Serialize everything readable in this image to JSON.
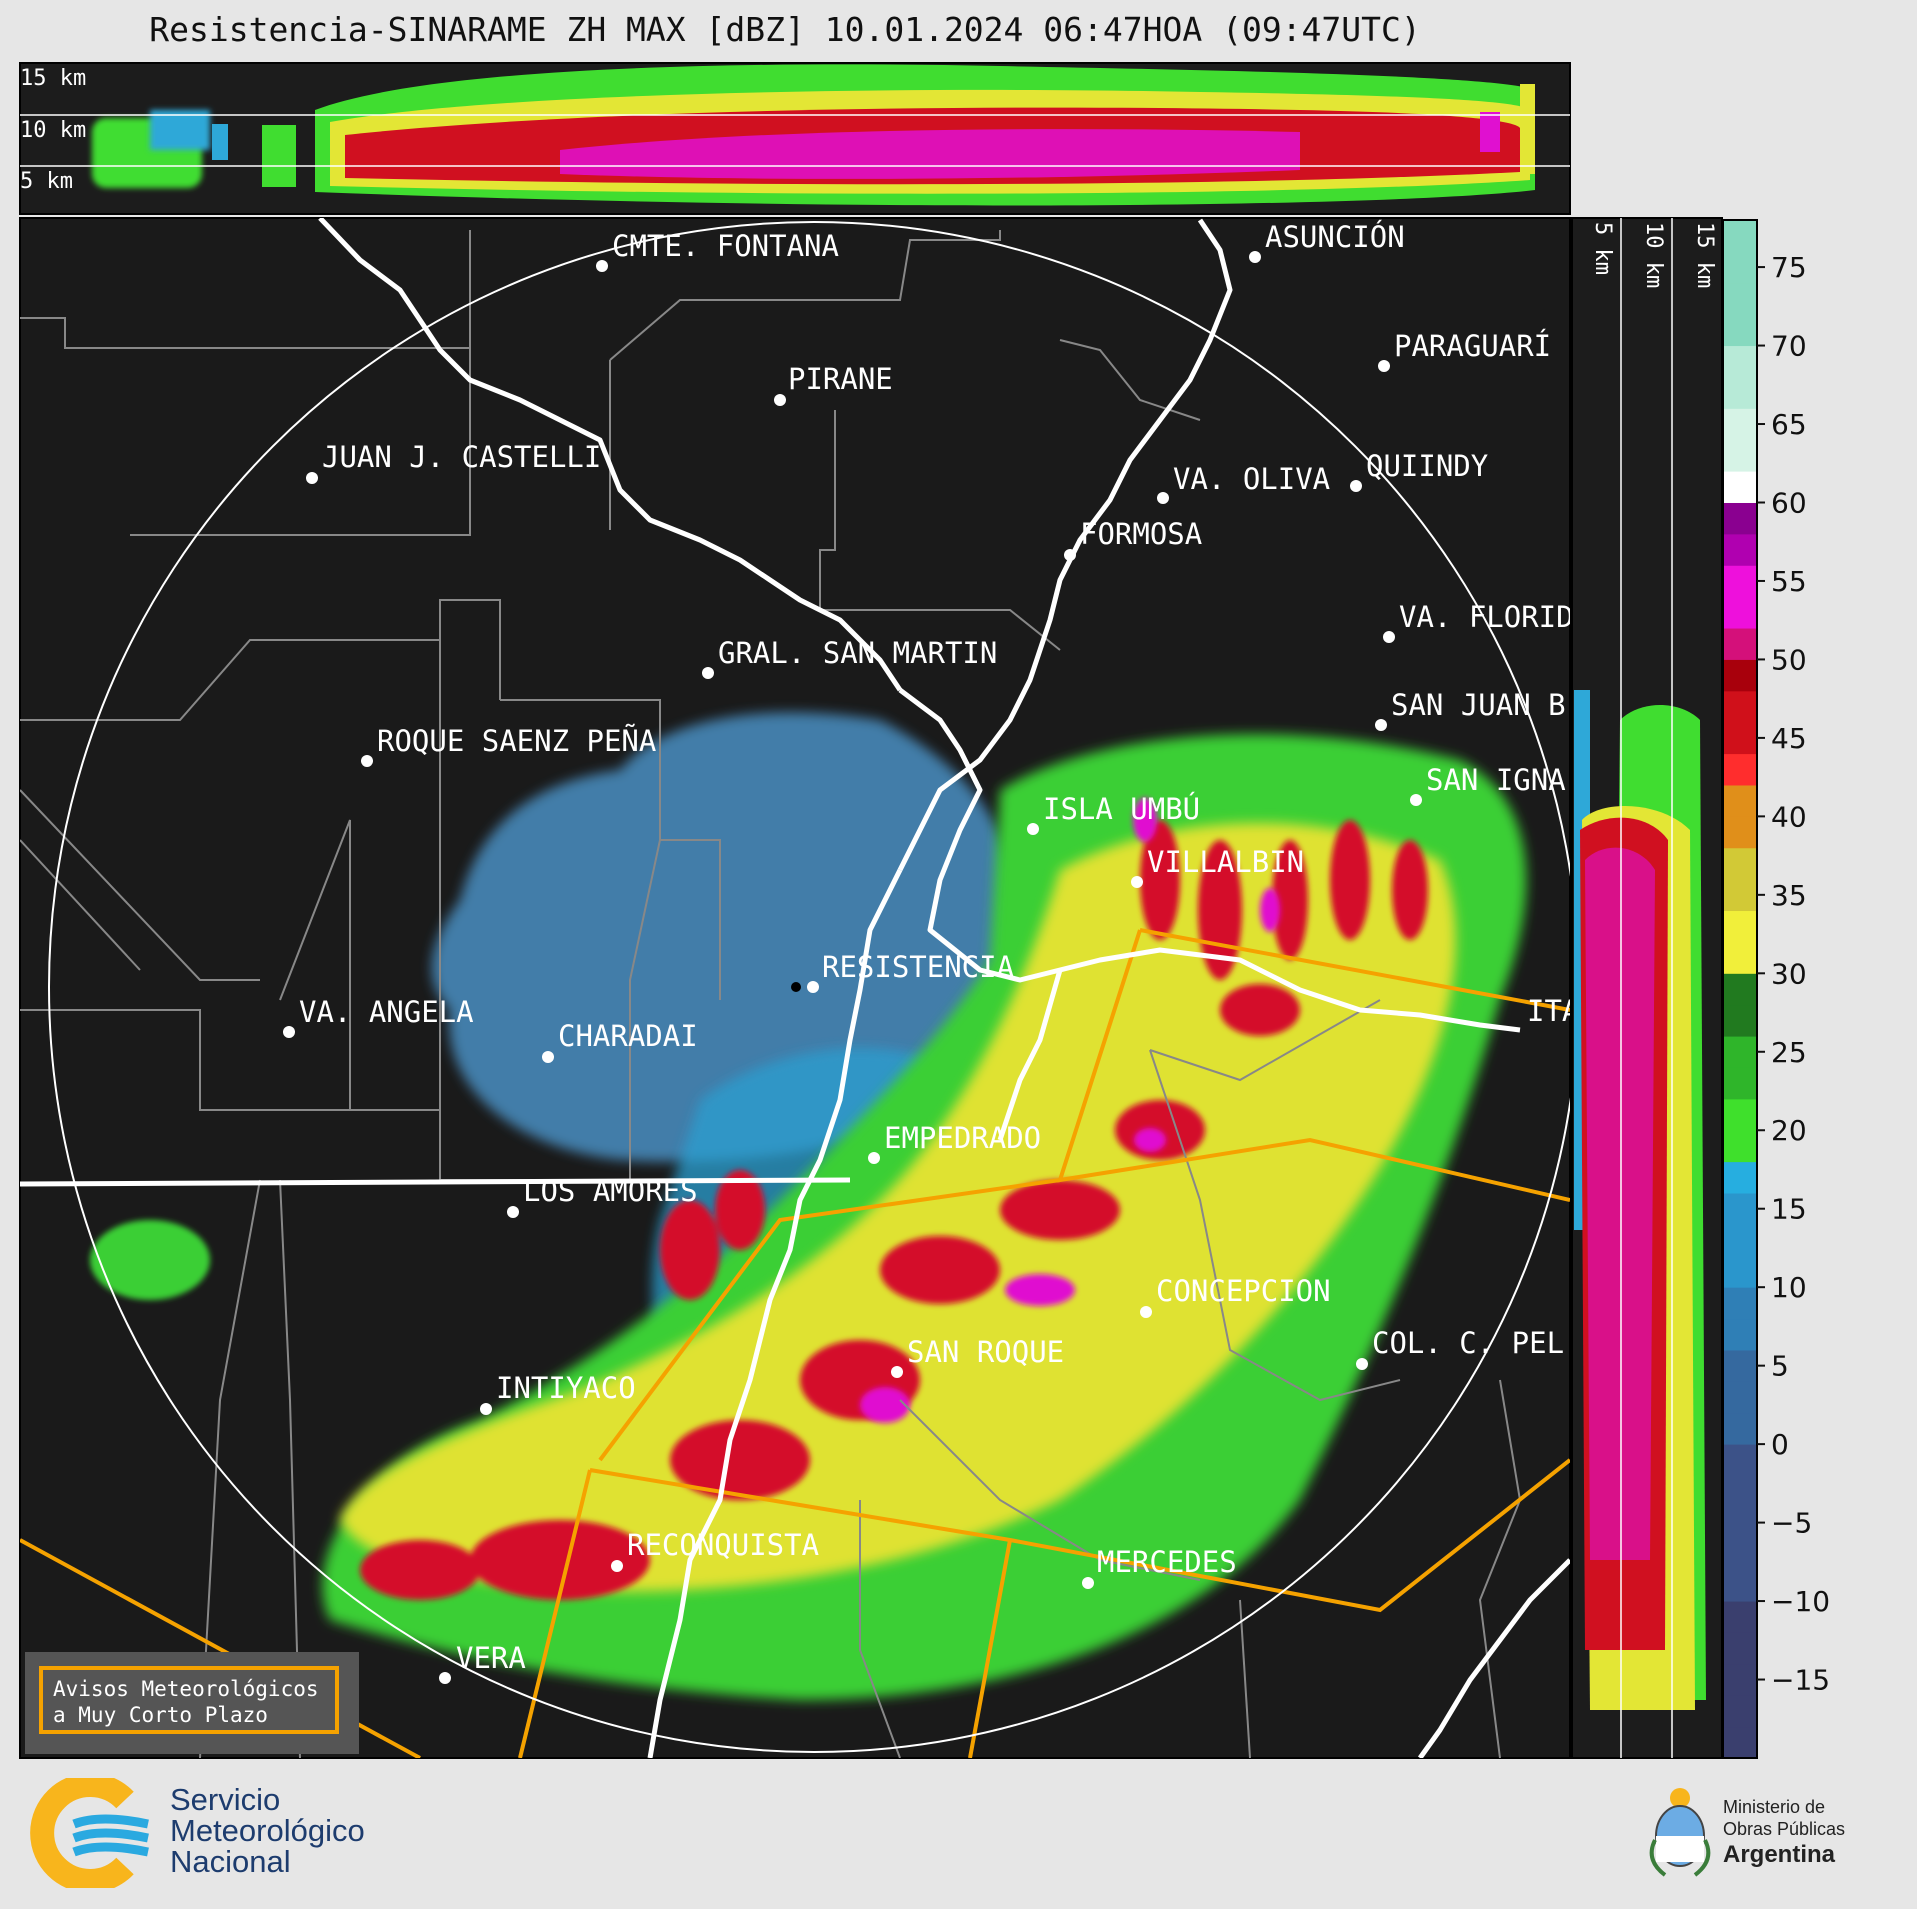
{
  "title": "Resistencia-SINARAME ZH MAX [dBZ] 10.01.2024 06:47HOA (09:47UTC)",
  "cross_section_top": {
    "labels": [
      "15 km",
      "10 km",
      "5 km"
    ]
  },
  "cross_section_side": {
    "labels": [
      "5 km",
      "10 km",
      "15 km"
    ]
  },
  "colorbar": {
    "ticks": [
      "75",
      "70",
      "65",
      "60",
      "55",
      "50",
      "45",
      "40",
      "35",
      "30",
      "25",
      "20",
      "15",
      "10",
      "5",
      "0",
      "−5",
      "−10",
      "−15"
    ],
    "unit": "dBZ"
  },
  "cities": [
    {
      "name": "CMTE. FONTANA"
    },
    {
      "name": "ASUNCIÓN"
    },
    {
      "name": "PIRANE"
    },
    {
      "name": "PARAGUARÍ"
    },
    {
      "name": "JUAN J. CASTELLI"
    },
    {
      "name": "VA. OLIVA"
    },
    {
      "name": "QUIINDY"
    },
    {
      "name": "FORMOSA"
    },
    {
      "name": "VA. FLORID"
    },
    {
      "name": "GRAL. SAN MARTIN"
    },
    {
      "name": "SAN JUAN B"
    },
    {
      "name": "ROQUE SAENZ PEÑA"
    },
    {
      "name": "SAN IGNA"
    },
    {
      "name": "ISLA UMBÚ"
    },
    {
      "name": "VILLALBIN"
    },
    {
      "name": "RESISTENCIA"
    },
    {
      "name": "VA. ANGELA"
    },
    {
      "name": "CHARADAI"
    },
    {
      "name": "ITA"
    },
    {
      "name": "EMPEDRADO"
    },
    {
      "name": "LOS AMORES"
    },
    {
      "name": "CONCEPCION"
    },
    {
      "name": "SAN ROQUE"
    },
    {
      "name": "COL. C. PEL"
    },
    {
      "name": "INTIYACO"
    },
    {
      "name": "RECONQUISTA"
    },
    {
      "name": "MERCEDES"
    },
    {
      "name": "VERA"
    }
  ],
  "avisos": {
    "line1": "Avisos Meteorológicos",
    "line2": "a Muy Corto Plazo"
  },
  "smn_logo": {
    "line1": "Servicio",
    "line2": "Meteorológico",
    "line3": "Nacional"
  },
  "ministry_logo": {
    "line1": "Ministerio de",
    "line2": "Obras Públicas",
    "line3": "Argentina"
  }
}
